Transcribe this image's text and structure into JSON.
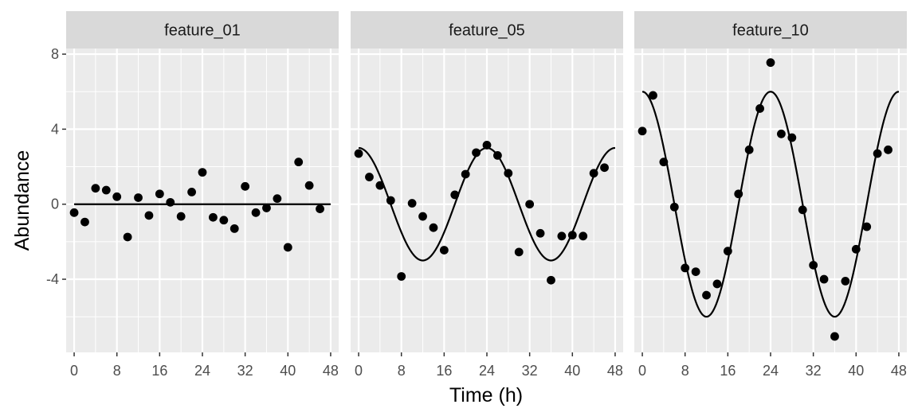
{
  "chart_data": {
    "type": "scatter",
    "xlabel": "Time (h)",
    "ylabel": "Abundance",
    "xlim": [
      -1.5,
      49.5
    ],
    "ylim": [
      -7.9,
      8.3
    ],
    "x_ticks": [
      0,
      8,
      16,
      24,
      32,
      40,
      48
    ],
    "y_ticks": [
      -4,
      0,
      4,
      8
    ],
    "grid": true,
    "colors": {
      "panel_bg": "#ebebeb",
      "strip_bg": "#d9d9d9",
      "grid": "#ffffff",
      "points": "#000000",
      "line": "#000000"
    },
    "panels": [
      {
        "name": "feature_01",
        "fit": {
          "mean": 0,
          "amplitude": 0,
          "period": 24,
          "peak": 0
        },
        "x": [
          0,
          2,
          4,
          6,
          8,
          10,
          12,
          14,
          16,
          18,
          20,
          22,
          24,
          26,
          28,
          30,
          32,
          34,
          36,
          38,
          40,
          42,
          44,
          46
        ],
        "y": [
          -0.45,
          -0.95,
          0.85,
          0.75,
          0.4,
          -1.75,
          0.35,
          -0.6,
          0.55,
          0.1,
          -0.65,
          0.65,
          1.7,
          -0.7,
          -0.85,
          -1.3,
          0.95,
          -0.45,
          -0.2,
          0.3,
          -2.3,
          2.25,
          1.0,
          -0.25
        ]
      },
      {
        "name": "feature_05",
        "fit": {
          "mean": 0,
          "amplitude": 3,
          "period": 24,
          "peak": 0
        },
        "x": [
          0,
          2,
          4,
          6,
          8,
          10,
          12,
          14,
          16,
          18,
          20,
          22,
          24,
          26,
          28,
          30,
          32,
          34,
          36,
          38,
          40,
          42,
          44,
          46
        ],
        "y": [
          2.7,
          1.45,
          1.0,
          0.2,
          -3.85,
          0.05,
          -0.65,
          -1.25,
          -2.45,
          0.5,
          1.6,
          2.75,
          3.15,
          2.6,
          1.65,
          -2.55,
          0.0,
          -1.55,
          -4.05,
          -1.7,
          -1.65,
          -1.7,
          1.65,
          1.95
        ]
      },
      {
        "name": "feature_10",
        "fit": {
          "mean": 0,
          "amplitude": 6,
          "period": 24,
          "peak": 0
        },
        "x": [
          0,
          2,
          4,
          6,
          8,
          10,
          12,
          14,
          16,
          18,
          20,
          22,
          24,
          26,
          28,
          30,
          32,
          34,
          36,
          38,
          40,
          42,
          44,
          46
        ],
        "y": [
          3.9,
          5.8,
          2.25,
          -0.15,
          -3.4,
          -3.6,
          -4.85,
          -4.25,
          -2.5,
          0.55,
          2.9,
          5.1,
          7.55,
          3.75,
          3.55,
          -0.3,
          -3.25,
          -4.0,
          -7.05,
          -4.1,
          -2.4,
          -1.2,
          2.7,
          2.9
        ]
      }
    ]
  }
}
